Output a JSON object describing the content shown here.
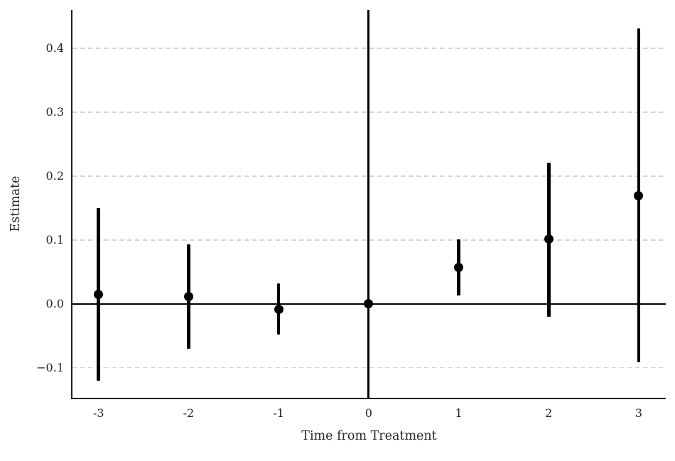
{
  "chart_data": {
    "type": "scatter",
    "subtype": "event-study-errorbar",
    "title": "",
    "xlabel": "Time from Treatment",
    "ylabel": "Estimate",
    "points": [
      {
        "x": -3,
        "estimate": 0.015,
        "ci_low": -0.12,
        "ci_high": 0.15
      },
      {
        "x": -2,
        "estimate": 0.011,
        "ci_low": -0.07,
        "ci_high": 0.093
      },
      {
        "x": -1,
        "estimate": -0.009,
        "ci_low": -0.048,
        "ci_high": 0.032
      },
      {
        "x": 0,
        "estimate": 0.0,
        "ci_low": 0.0,
        "ci_high": 0.0
      },
      {
        "x": 1,
        "estimate": 0.057,
        "ci_low": 0.013,
        "ci_high": 0.101
      },
      {
        "x": 2,
        "estimate": 0.101,
        "ci_low": -0.02,
        "ci_high": 0.221
      },
      {
        "x": 3,
        "estimate": 0.169,
        "ci_low": -0.091,
        "ci_high": 0.431
      }
    ],
    "xticks": [
      -3,
      -2,
      -1,
      0,
      1,
      2,
      3
    ],
    "xtick_labels": [
      "-3",
      "-2",
      "-1",
      "0",
      "1",
      "2",
      "3"
    ],
    "yticks": [
      -0.1,
      0.0,
      0.1,
      0.2,
      0.3,
      0.4
    ],
    "ytick_labels": [
      "−0.1",
      "0.0",
      "0.1",
      "0.2",
      "0.3",
      "0.4"
    ],
    "xlim": [
      -3.29,
      3.3
    ],
    "ylim": [
      -0.147,
      0.46
    ],
    "reference_vline_x": 0,
    "zero_hline_y": 0,
    "grid": "horizontal-dashed",
    "legend": "none",
    "colors": {
      "background": "#ffffff",
      "point": "#000000",
      "error_bar": "#000000",
      "reference_line": "#000000",
      "spine": "#1f1f1f",
      "gridline": "#d4d4d4",
      "text": "#262626"
    }
  }
}
